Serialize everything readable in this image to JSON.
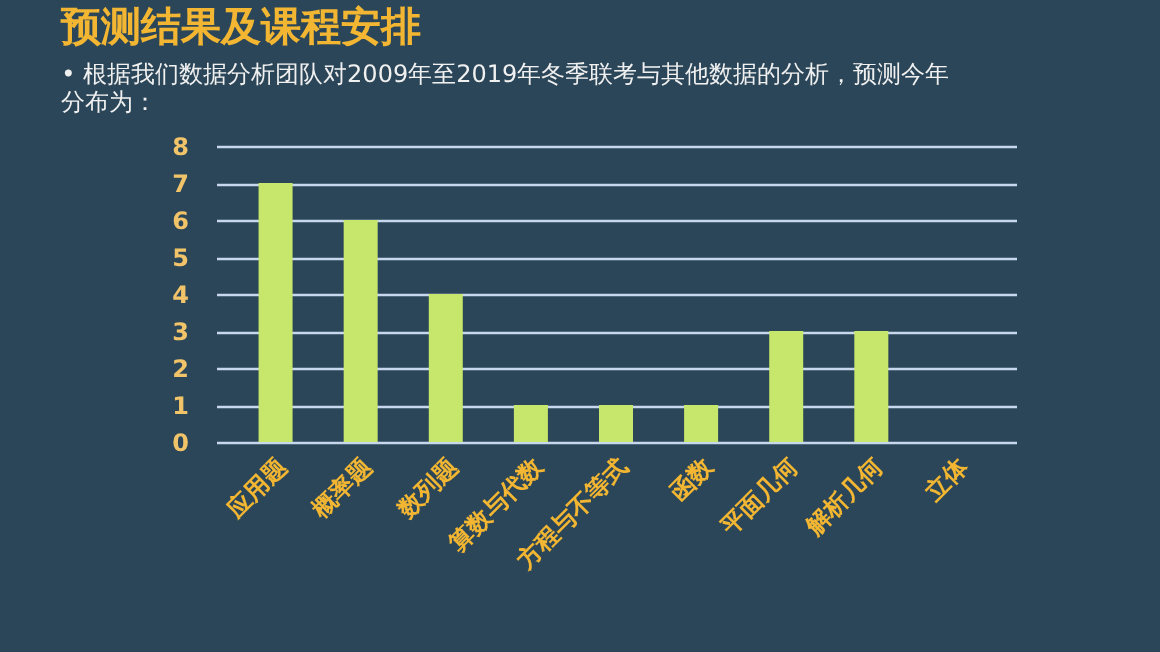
{
  "chart_data": {
    "type": "bar",
    "title": "预测结果及课程安排",
    "subtitle": "• 根据我们数据分析团队对2009年至2019年冬季联考与其他数据的分析，预测今年分布为：",
    "categories": [
      "应用题",
      "概率题",
      "数列题",
      "算数与代数",
      "方程与不等式",
      "函数",
      "平面几何",
      "解析几何",
      "立体"
    ],
    "values": [
      7,
      6,
      4,
      1,
      1,
      1,
      3,
      3,
      null
    ],
    "color": "#c6e66c",
    "ylim": [
      0,
      8
    ],
    "yticks": [
      0,
      1,
      2,
      3,
      4,
      5,
      6,
      7,
      8
    ],
    "grid": "y"
  }
}
